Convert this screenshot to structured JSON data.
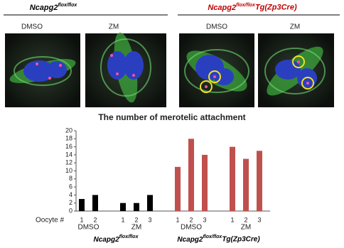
{
  "figure": {
    "headers": [
      {
        "base": "Ncapg2",
        "sup": "flox/flox",
        "color": "#000000"
      },
      {
        "base": "Ncapg2",
        "sup": "flox/flox",
        "tail": "Tg(Zp3Cre)",
        "color": "#c00000"
      }
    ],
    "panel_labels": [
      "DMSO",
      "ZM",
      "DMSO",
      "ZM"
    ]
  },
  "chart_data": {
    "type": "bar",
    "title": "The number of merotelic attachment",
    "x_label": "Oocyte #",
    "ylim": [
      0,
      20
    ],
    "yticks": [
      0,
      2,
      4,
      6,
      8,
      10,
      12,
      14,
      16,
      18,
      20
    ],
    "genotypes": [
      {
        "base": "Ncapg2",
        "sup": "flox/flox",
        "color": "#000000",
        "conditions": [
          {
            "label": "DMSO",
            "categories": [
              "1",
              "2"
            ],
            "values": [
              3,
              4
            ]
          },
          {
            "label": "ZM",
            "categories": [
              "1",
              "2",
              "3"
            ],
            "values": [
              2,
              2,
              4
            ]
          }
        ]
      },
      {
        "base": "Ncapg2",
        "sup": "flox/flox",
        "tail": "Tg(Zp3Cre)",
        "color": "#c0504d",
        "conditions": [
          {
            "label": "DMSO",
            "categories": [
              "1",
              "2",
              "3"
            ],
            "values": [
              11,
              18,
              14
            ]
          },
          {
            "label": "ZM",
            "categories": [
              "1",
              "2",
              "3"
            ],
            "values": [
              16,
              13,
              15
            ]
          }
        ]
      }
    ]
  }
}
